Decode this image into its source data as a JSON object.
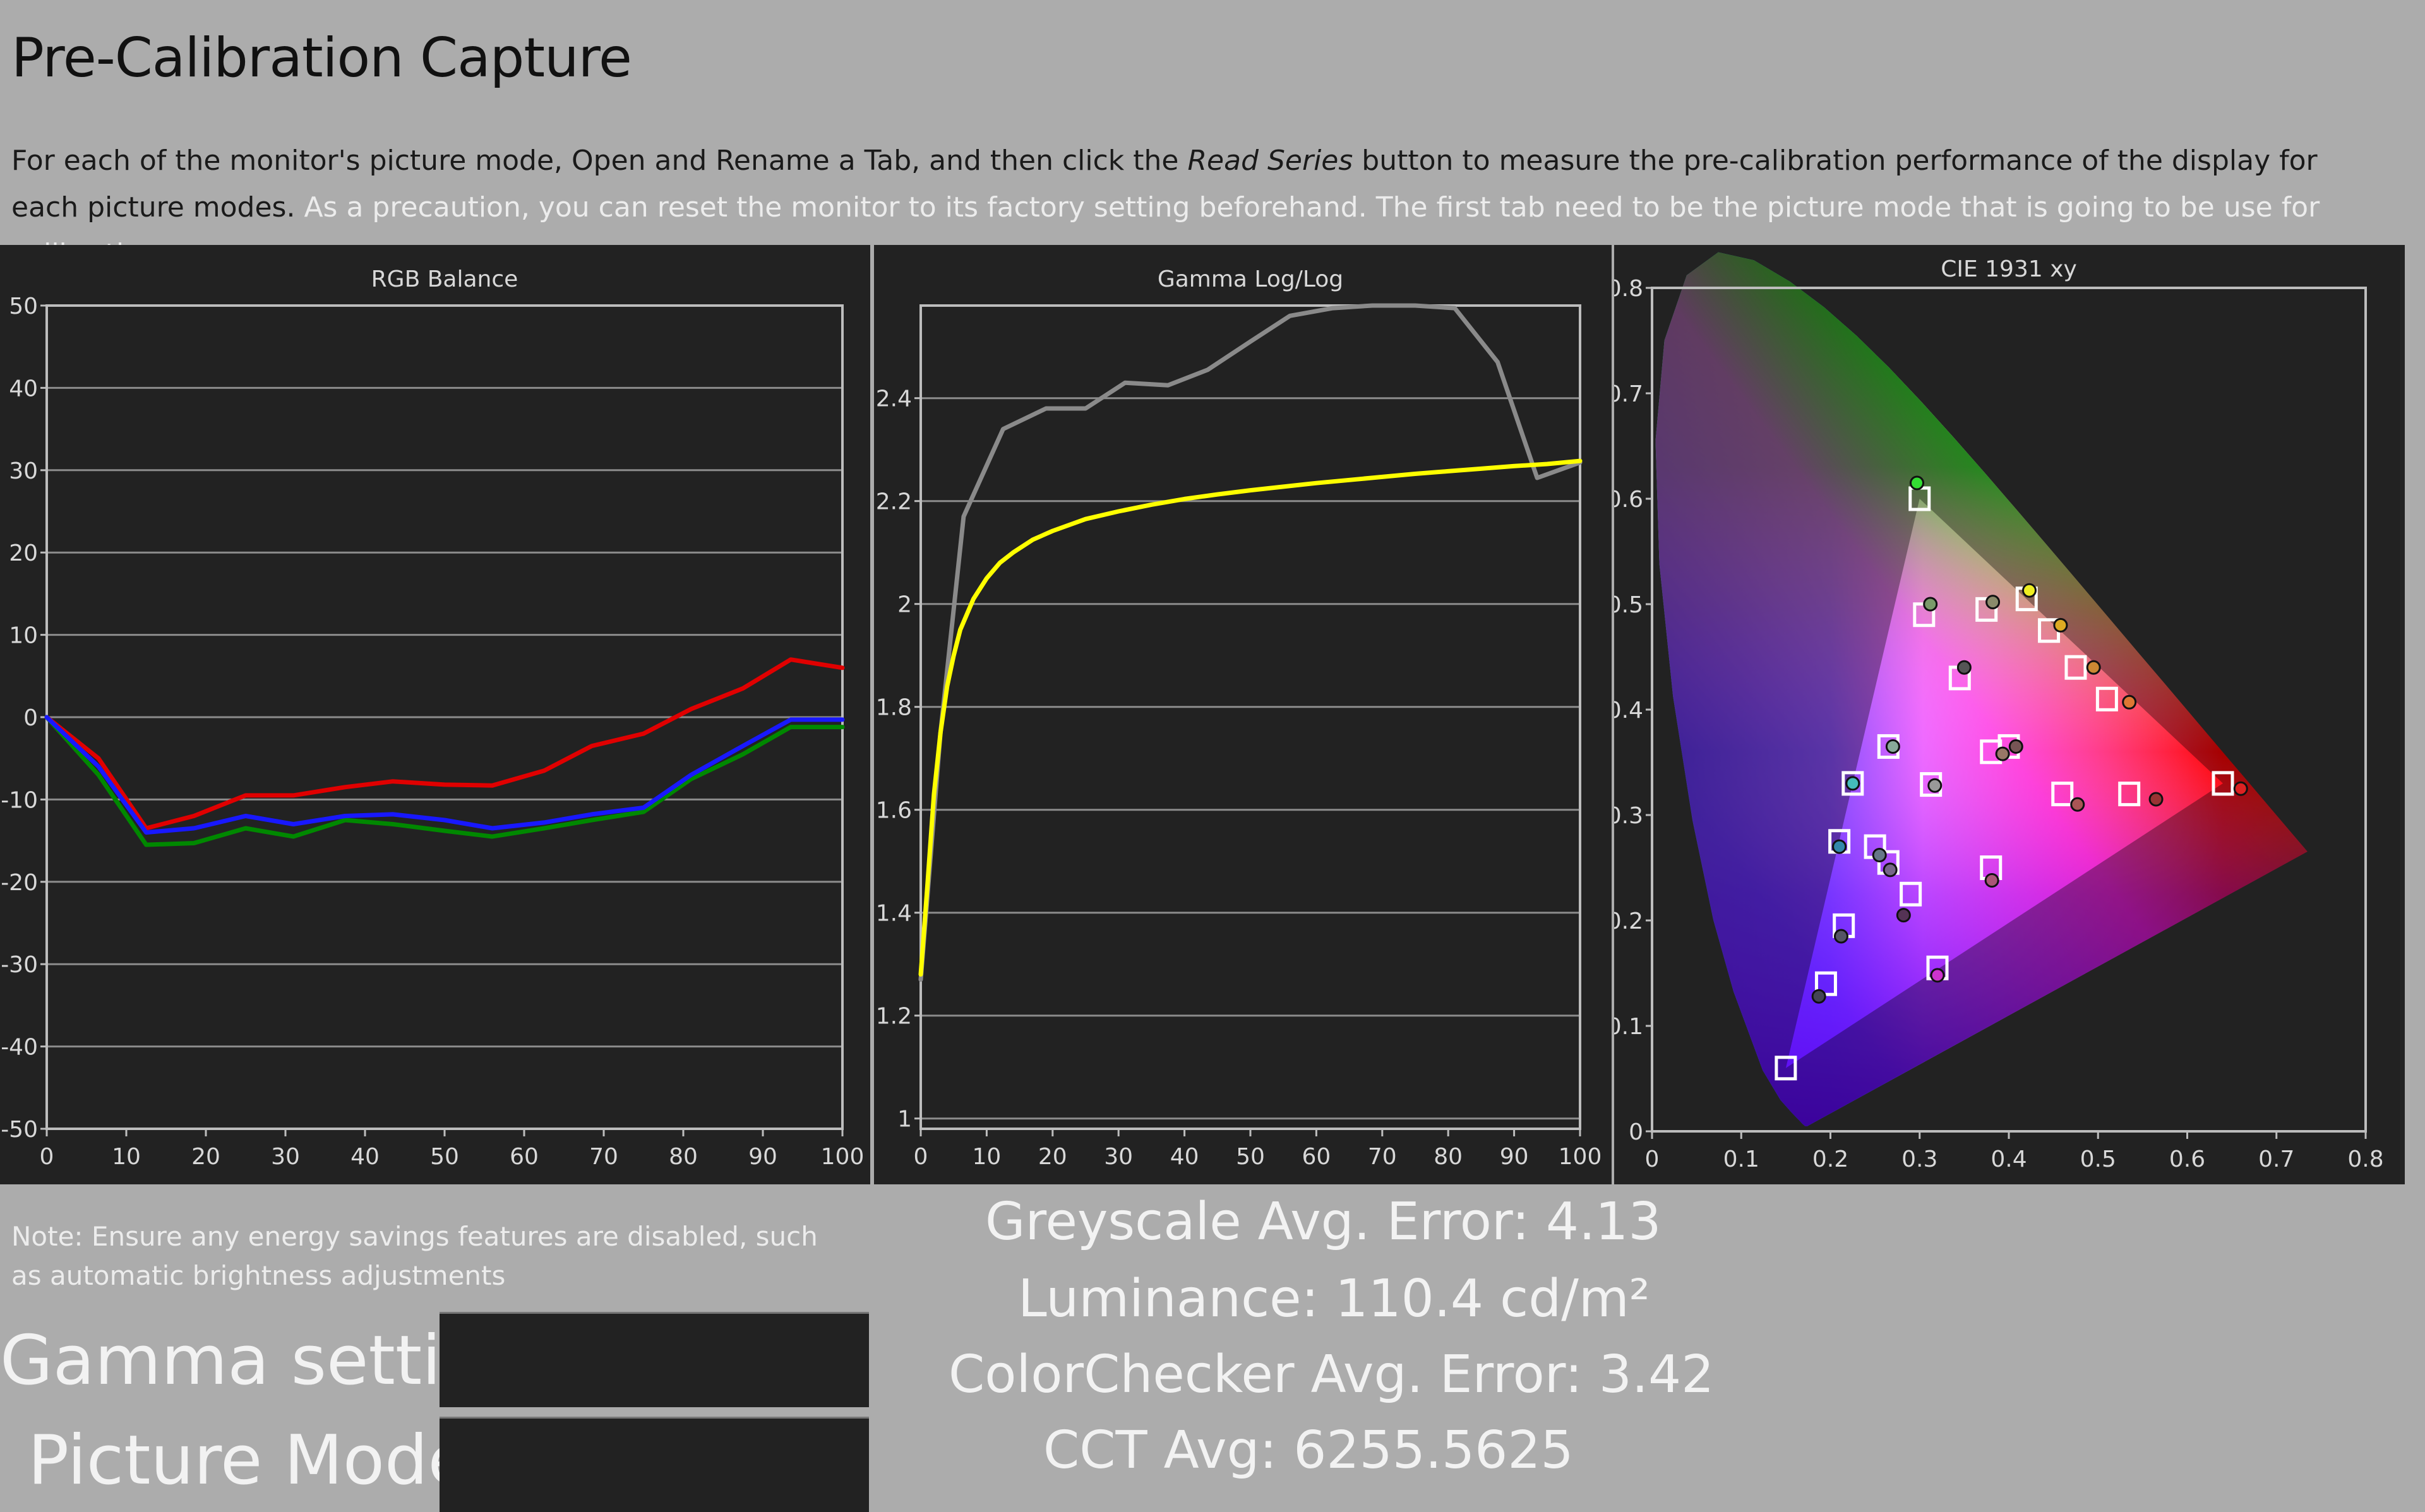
{
  "page": {
    "title": "Pre-Calibration Capture",
    "description_part1": "For each of the monitor's picture mode, Open and Rename a Tab, and then click the ",
    "description_button": "Read Series",
    "description_part2": " button to measure the pre-calibration performance of the display for each picture modes. ",
    "description_part3": "As a precaution, you can reset the monitor to its factory setting beforehand. The first tab need to be the picture mode that is going to be use for calibration purposes.",
    "note": "Note: Ensure any energy savings features are disabled, such as automatic brightness adjustments"
  },
  "settings": {
    "gamma_label": "Gamma setting:",
    "gamma_value": "",
    "picture_mode_label": "Picture Mode:",
    "picture_mode_value": ""
  },
  "summary": {
    "greyscale": "Greyscale Avg. Error: 4.13",
    "luminance": "Luminance: 110.4 cd/m²",
    "colorchecker": "ColorChecker Avg. Error: 3.42",
    "cct": "CCT Avg: 6255.5625"
  },
  "colors": {
    "page_background": "#acacac",
    "panel_background": "#222222",
    "red": "#e00000",
    "green": "#008800",
    "blue": "#1818ff",
    "gamma_measured": "#ffff00",
    "gamma_target": "#8a8a8a"
  },
  "chart_data": [
    {
      "type": "line",
      "title": "RGB Balance",
      "xlim": [
        0,
        100
      ],
      "ylim": [
        -50,
        50
      ],
      "xticks": [
        0,
        10,
        20,
        30,
        40,
        50,
        60,
        70,
        80,
        90,
        100
      ],
      "yticks": [
        50,
        40,
        30,
        20,
        10,
        0,
        -10,
        -20,
        -30,
        -40,
        -50
      ],
      "grid": true,
      "x": [
        0,
        6.5,
        12.5,
        18.5,
        25,
        31,
        37.5,
        43.5,
        50,
        56,
        62.5,
        68.5,
        75,
        81,
        87.5,
        93.5,
        100
      ],
      "series": [
        {
          "color": "#e00000",
          "values": [
            0,
            -5,
            -13.5,
            -12,
            -9.5,
            -9.5,
            -8.5,
            -7.8,
            -8.2,
            -8.3,
            -6.5,
            -3.5,
            -2,
            1,
            3.5,
            7,
            6
          ]
        },
        {
          "color": "#008800",
          "values": [
            0,
            -7,
            -15.5,
            -15.3,
            -13.5,
            -14.5,
            -12.5,
            -13,
            -13.8,
            -14.5,
            -13.5,
            -12.5,
            -11.5,
            -7.5,
            -4.5,
            -1.2,
            -1.2
          ]
        },
        {
          "color": "#1818ff",
          "values": [
            0,
            -6,
            -14,
            -13.5,
            -12,
            -13,
            -12,
            -11.8,
            -12.5,
            -13.5,
            -12.8,
            -11.8,
            -11,
            -7,
            -3.5,
            -0.3,
            -0.3
          ]
        }
      ]
    },
    {
      "type": "line",
      "title": "Gamma Log/Log",
      "xlim": [
        0,
        100
      ],
      "ylim": [
        0.98,
        2.58
      ],
      "xticks": [
        0,
        10,
        20,
        30,
        40,
        50,
        60,
        70,
        80,
        90,
        100
      ],
      "yticks": [
        2.4,
        2.2,
        2,
        1.8,
        1.6,
        1.4,
        1.2,
        1
      ],
      "ytick_labels": [
        "2.4",
        "2.2",
        "2",
        "1.8",
        "1.6",
        "1.4",
        "1.2",
        "1"
      ],
      "grid": true,
      "series": [
        {
          "color": "#8a8a8a",
          "x": [
            0,
            3,
            6.5,
            12.5,
            19,
            25,
            31,
            37.5,
            43.5,
            50,
            56,
            62.5,
            68.5,
            75,
            81,
            87.5,
            93.5,
            100
          ],
          "values": [
            1.27,
            1.75,
            2.17,
            2.34,
            2.38,
            2.38,
            2.43,
            2.425,
            2.455,
            2.51,
            2.56,
            2.575,
            2.58,
            2.58,
            2.575,
            2.47,
            2.245,
            2.275
          ]
        },
        {
          "color": "#ffff00",
          "x": [
            0,
            1,
            2,
            3,
            4,
            5,
            6,
            8,
            10,
            12,
            14,
            17,
            20,
            25,
            30,
            35,
            40,
            45,
            50,
            55,
            60,
            65,
            70,
            75,
            80,
            85,
            90,
            95,
            100
          ],
          "values": [
            1.28,
            1.45,
            1.63,
            1.75,
            1.84,
            1.9,
            1.95,
            2.01,
            2.05,
            2.08,
            2.1,
            2.125,
            2.142,
            2.165,
            2.18,
            2.193,
            2.204,
            2.213,
            2.221,
            2.228,
            2.235,
            2.241,
            2.247,
            2.253,
            2.258,
            2.263,
            2.268,
            2.272,
            2.278
          ]
        }
      ]
    },
    {
      "type": "scatter",
      "title": "CIE 1931 xy",
      "xlim": [
        0,
        0.8
      ],
      "ylim": [
        0,
        0.8
      ],
      "xticks": [
        0,
        0.1,
        0.2,
        0.3,
        0.4,
        0.5,
        0.6,
        0.7,
        0.8
      ],
      "yticks": [
        0.8,
        0.7,
        0.6,
        0.5,
        0.4,
        0.3,
        0.2,
        0.1,
        0
      ],
      "gamut_triangle": [
        [
          0.64,
          0.33
        ],
        [
          0.3,
          0.6
        ],
        [
          0.15,
          0.06
        ]
      ],
      "targets": [
        [
          0.3,
          0.6
        ],
        [
          0.305,
          0.49
        ],
        [
          0.375,
          0.495
        ],
        [
          0.42,
          0.505
        ],
        [
          0.445,
          0.475
        ],
        [
          0.475,
          0.44
        ],
        [
          0.51,
          0.41
        ],
        [
          0.345,
          0.43
        ],
        [
          0.265,
          0.365
        ],
        [
          0.225,
          0.33
        ],
        [
          0.3127,
          0.329
        ],
        [
          0.38,
          0.36
        ],
        [
          0.4,
          0.365
        ],
        [
          0.46,
          0.32
        ],
        [
          0.535,
          0.32
        ],
        [
          0.64,
          0.33
        ],
        [
          0.21,
          0.275
        ],
        [
          0.25,
          0.27
        ],
        [
          0.265,
          0.255
        ],
        [
          0.38,
          0.25
        ],
        [
          0.29,
          0.225
        ],
        [
          0.215,
          0.195
        ],
        [
          0.195,
          0.14
        ],
        [
          0.32,
          0.155
        ],
        [
          0.15,
          0.06
        ]
      ],
      "measured": [
        {
          "x": 0.297,
          "y": 0.615,
          "color": "#33dd33"
        },
        {
          "x": 0.312,
          "y": 0.5,
          "color": "#7a9a6a"
        },
        {
          "x": 0.382,
          "y": 0.502,
          "color": "#8a8a6a"
        },
        {
          "x": 0.423,
          "y": 0.513,
          "color": "#eeee22"
        },
        {
          "x": 0.458,
          "y": 0.48,
          "color": "#ddaa22"
        },
        {
          "x": 0.495,
          "y": 0.44,
          "color": "#cc8833"
        },
        {
          "x": 0.535,
          "y": 0.407,
          "color": "#dd7733"
        },
        {
          "x": 0.35,
          "y": 0.44,
          "color": "#555555"
        },
        {
          "x": 0.27,
          "y": 0.365,
          "color": "#88aa99"
        },
        {
          "x": 0.225,
          "y": 0.33,
          "color": "#44bbbb"
        },
        {
          "x": 0.317,
          "y": 0.328,
          "color": "#999999"
        },
        {
          "x": 0.393,
          "y": 0.358,
          "color": "#997766"
        },
        {
          "x": 0.408,
          "y": 0.365,
          "color": "#775555"
        },
        {
          "x": 0.477,
          "y": 0.31,
          "color": "#aa5555"
        },
        {
          "x": 0.565,
          "y": 0.315,
          "color": "#993333"
        },
        {
          "x": 0.66,
          "y": 0.325,
          "color": "#dd2222"
        },
        {
          "x": 0.21,
          "y": 0.27,
          "color": "#3388aa"
        },
        {
          "x": 0.255,
          "y": 0.262,
          "color": "#667788"
        },
        {
          "x": 0.267,
          "y": 0.248,
          "color": "#776688"
        },
        {
          "x": 0.381,
          "y": 0.238,
          "color": "#aa5577"
        },
        {
          "x": 0.282,
          "y": 0.205,
          "color": "#553355"
        },
        {
          "x": 0.212,
          "y": 0.185,
          "color": "#555566"
        },
        {
          "x": 0.187,
          "y": 0.128,
          "color": "#444455"
        },
        {
          "x": 0.32,
          "y": 0.148,
          "color": "#cc33cc"
        }
      ]
    }
  ]
}
